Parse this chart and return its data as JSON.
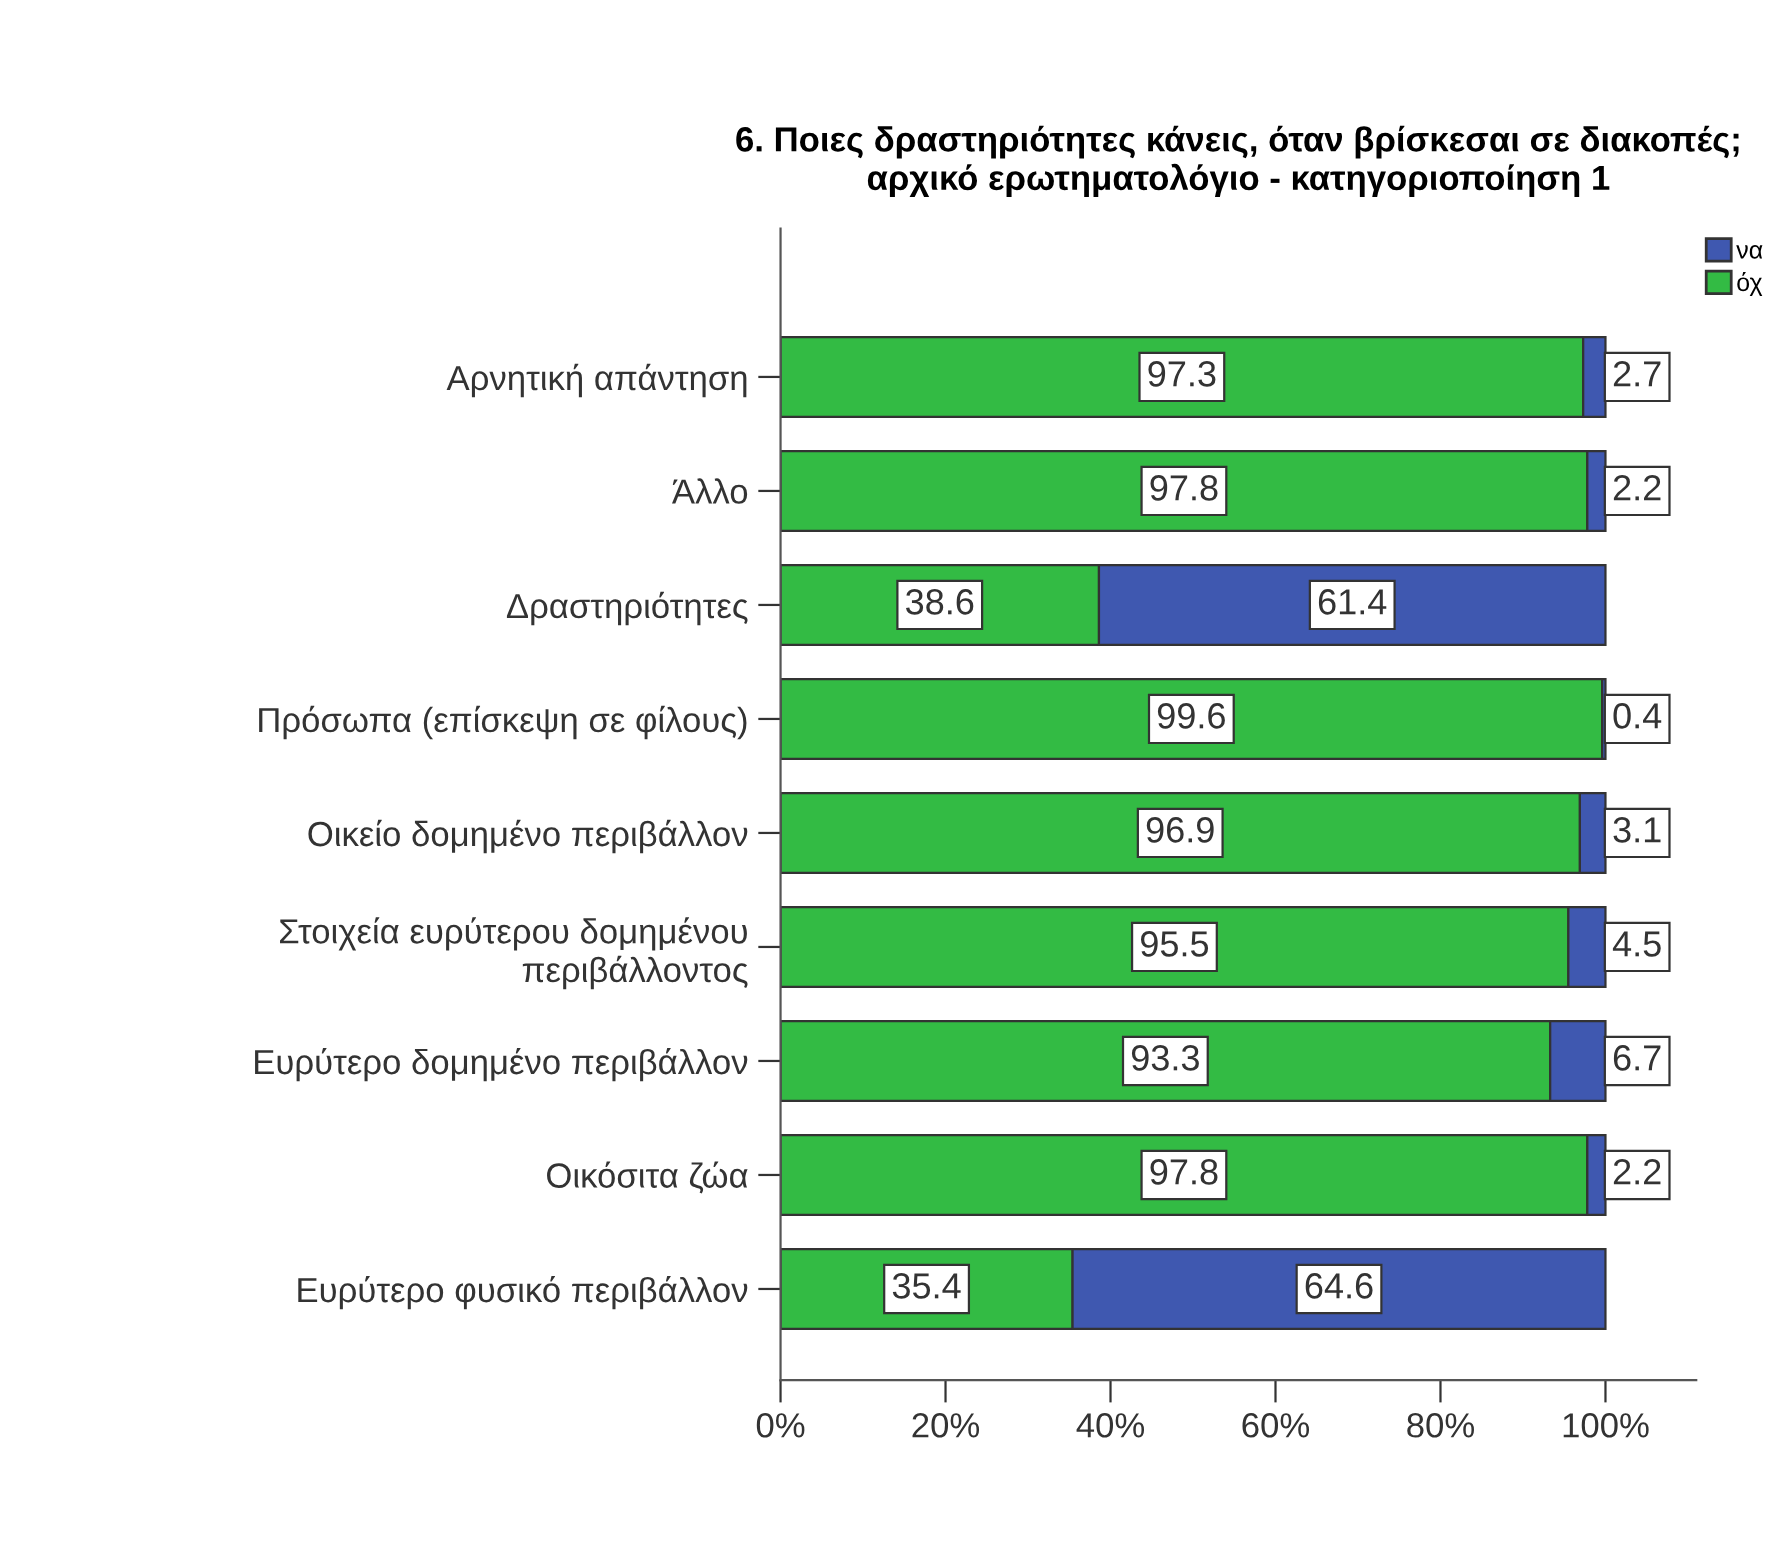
{
  "chart_data": {
    "type": "bar",
    "orientation": "horizontal",
    "stacked": true,
    "title": "6. Ποιες δραστηριότητες κάνεις, όταν βρίσκεσαι σε διακοπές;\nαρχικό ερωτηματολόγιο - κατηγοριοποίηση 1",
    "categories": [
      "Αρνητική απάντηση",
      "Άλλο",
      "Δραστηριότητες",
      "Πρόσωπα (επίσκεψη σε φίλους)",
      "Οικείο δομημένο περιβάλλον",
      "Στοιχεία ευρύτερου δομημένου\nπεριβάλλοντος",
      "Ευρύτερο δομημένο περιβάλλον",
      "Οικόσιτα ζώα",
      "Ευρύτερο φυσικό περιβάλλον"
    ],
    "series": [
      {
        "name": "όχ",
        "color": "#33bb44",
        "values": [
          97.3,
          97.8,
          38.6,
          99.6,
          96.9,
          95.5,
          93.3,
          97.8,
          35.4
        ]
      },
      {
        "name": "να",
        "color": "#3f58b0",
        "values": [
          2.7,
          2.2,
          61.4,
          0.4,
          3.1,
          4.5,
          6.7,
          2.2,
          64.6
        ]
      }
    ],
    "xlim": [
      0,
      111
    ],
    "xticks": [
      {
        "value": 0,
        "label": "0%"
      },
      {
        "value": 20,
        "label": "20%"
      },
      {
        "value": 40,
        "label": "40%"
      },
      {
        "value": 60,
        "label": "60%"
      },
      {
        "value": 80,
        "label": "80%"
      },
      {
        "value": 100,
        "label": "100%"
      }
    ],
    "data_labels": true,
    "grid": false,
    "legend": "top right"
  }
}
